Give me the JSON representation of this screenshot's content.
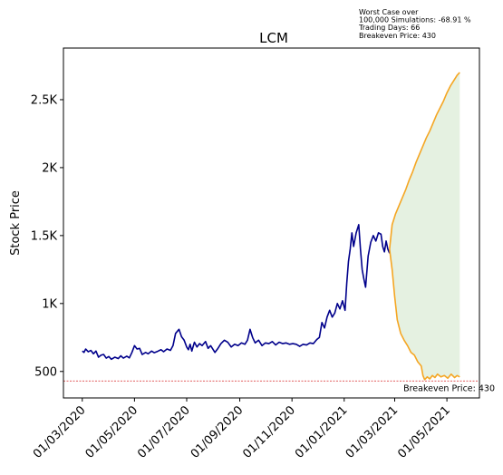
{
  "chart_data": {
    "type": "line",
    "title": "LCM",
    "ylabel": "Stock Price",
    "xlabel": "",
    "grid": false,
    "x_tick_labels": [
      "01/03/2020",
      "01/05/2020",
      "01/07/2020",
      "01/09/2020",
      "01/11/2020",
      "01/01/2021",
      "01/03/2021",
      "01/05/2021"
    ],
    "x_tick_dates": [
      "2020-03-01",
      "2020-05-01",
      "2020-07-01",
      "2020-09-01",
      "2020-11-01",
      "2021-01-01",
      "2021-03-01",
      "2021-05-01"
    ],
    "xlim": [
      "2020-02-08",
      "2021-06-08"
    ],
    "y_ticks": [
      500,
      1000,
      1500,
      2000,
      2500
    ],
    "y_tick_labels": [
      "500",
      "1K",
      "1.5K",
      "2K",
      "2.5K"
    ],
    "ylim": [
      305,
      2880
    ],
    "annotation": {
      "lines": [
        "Worst Case over",
        "100,000 Simulations: -68.91 %",
        "Trading Days: 66",
        "Breakeven Price: 430"
      ]
    },
    "breakeven": {
      "value": 430,
      "label": "Breakeven Price: 430",
      "color": "#d62728"
    },
    "series": [
      {
        "role": "historical",
        "color": "#00008b",
        "points": [
          [
            "2020-03-01",
            650
          ],
          [
            "2020-03-03",
            640
          ],
          [
            "2020-03-05",
            665
          ],
          [
            "2020-03-08",
            645
          ],
          [
            "2020-03-11",
            655
          ],
          [
            "2020-03-14",
            630
          ],
          [
            "2020-03-17",
            650
          ],
          [
            "2020-03-20",
            605
          ],
          [
            "2020-03-23",
            620
          ],
          [
            "2020-03-26",
            625
          ],
          [
            "2020-03-29",
            598
          ],
          [
            "2020-04-01",
            610
          ],
          [
            "2020-04-04",
            590
          ],
          [
            "2020-04-08",
            605
          ],
          [
            "2020-04-12",
            595
          ],
          [
            "2020-04-15",
            615
          ],
          [
            "2020-04-18",
            598
          ],
          [
            "2020-04-22",
            612
          ],
          [
            "2020-04-25",
            600
          ],
          [
            "2020-04-28",
            640
          ],
          [
            "2020-05-01",
            690
          ],
          [
            "2020-05-04",
            665
          ],
          [
            "2020-05-07",
            670
          ],
          [
            "2020-05-10",
            625
          ],
          [
            "2020-05-14",
            640
          ],
          [
            "2020-05-17",
            630
          ],
          [
            "2020-05-21",
            650
          ],
          [
            "2020-05-24",
            638
          ],
          [
            "2020-05-28",
            648
          ],
          [
            "2020-06-01",
            660
          ],
          [
            "2020-06-04",
            645
          ],
          [
            "2020-06-08",
            665
          ],
          [
            "2020-06-12",
            655
          ],
          [
            "2020-06-15",
            690
          ],
          [
            "2020-06-18",
            780
          ],
          [
            "2020-06-22",
            810
          ],
          [
            "2020-06-25",
            755
          ],
          [
            "2020-06-28",
            730
          ],
          [
            "2020-07-01",
            680
          ],
          [
            "2020-07-03",
            660
          ],
          [
            "2020-07-05",
            700
          ],
          [
            "2020-07-07",
            650
          ],
          [
            "2020-07-10",
            715
          ],
          [
            "2020-07-13",
            680
          ],
          [
            "2020-07-16",
            705
          ],
          [
            "2020-07-19",
            690
          ],
          [
            "2020-07-23",
            720
          ],
          [
            "2020-07-26",
            670
          ],
          [
            "2020-07-29",
            690
          ],
          [
            "2020-08-01",
            660
          ],
          [
            "2020-08-03",
            640
          ],
          [
            "2020-08-06",
            665
          ],
          [
            "2020-08-10",
            705
          ],
          [
            "2020-08-14",
            730
          ],
          [
            "2020-08-18",
            715
          ],
          [
            "2020-08-22",
            680
          ],
          [
            "2020-08-26",
            700
          ],
          [
            "2020-08-30",
            690
          ],
          [
            "2020-09-03",
            710
          ],
          [
            "2020-09-07",
            700
          ],
          [
            "2020-09-10",
            730
          ],
          [
            "2020-09-13",
            810
          ],
          [
            "2020-09-16",
            750
          ],
          [
            "2020-09-19",
            710
          ],
          [
            "2020-09-23",
            730
          ],
          [
            "2020-09-27",
            690
          ],
          [
            "2020-10-01",
            710
          ],
          [
            "2020-10-05",
            705
          ],
          [
            "2020-10-09",
            720
          ],
          [
            "2020-10-13",
            695
          ],
          [
            "2020-10-17",
            715
          ],
          [
            "2020-10-21",
            705
          ],
          [
            "2020-10-25",
            710
          ],
          [
            "2020-10-29",
            700
          ],
          [
            "2020-11-02",
            705
          ],
          [
            "2020-11-06",
            700
          ],
          [
            "2020-11-10",
            685
          ],
          [
            "2020-11-14",
            700
          ],
          [
            "2020-11-18",
            695
          ],
          [
            "2020-11-22",
            710
          ],
          [
            "2020-11-26",
            705
          ],
          [
            "2020-11-30",
            735
          ],
          [
            "2020-12-03",
            750
          ],
          [
            "2020-12-06",
            860
          ],
          [
            "2020-12-09",
            820
          ],
          [
            "2020-12-12",
            900
          ],
          [
            "2020-12-15",
            950
          ],
          [
            "2020-12-18",
            900
          ],
          [
            "2020-12-21",
            930
          ],
          [
            "2020-12-24",
            1000
          ],
          [
            "2020-12-27",
            960
          ],
          [
            "2020-12-30",
            1020
          ],
          [
            "2021-01-02",
            950
          ],
          [
            "2021-01-04",
            1150
          ],
          [
            "2021-01-06",
            1310
          ],
          [
            "2021-01-08",
            1400
          ],
          [
            "2021-01-10",
            1520
          ],
          [
            "2021-01-12",
            1420
          ],
          [
            "2021-01-15",
            1520
          ],
          [
            "2021-01-18",
            1580
          ],
          [
            "2021-01-20",
            1400
          ],
          [
            "2021-01-22",
            1250
          ],
          [
            "2021-01-24",
            1180
          ],
          [
            "2021-01-26",
            1120
          ],
          [
            "2021-01-29",
            1350
          ],
          [
            "2021-02-01",
            1450
          ],
          [
            "2021-02-04",
            1500
          ],
          [
            "2021-02-07",
            1460
          ],
          [
            "2021-02-10",
            1520
          ],
          [
            "2021-02-13",
            1510
          ],
          [
            "2021-02-15",
            1420
          ],
          [
            "2021-02-17",
            1380
          ],
          [
            "2021-02-19",
            1460
          ],
          [
            "2021-02-21",
            1400
          ],
          [
            "2021-02-23",
            1370
          ]
        ]
      },
      {
        "role": "simulation-upper",
        "color": "#f5a623",
        "points": [
          [
            "2021-02-23",
            1400
          ],
          [
            "2021-02-26",
            1580
          ],
          [
            "2021-03-02",
            1660
          ],
          [
            "2021-03-06",
            1720
          ],
          [
            "2021-03-10",
            1780
          ],
          [
            "2021-03-14",
            1840
          ],
          [
            "2021-03-18",
            1910
          ],
          [
            "2021-03-22",
            1970
          ],
          [
            "2021-03-26",
            2040
          ],
          [
            "2021-03-30",
            2100
          ],
          [
            "2021-04-03",
            2160
          ],
          [
            "2021-04-07",
            2220
          ],
          [
            "2021-04-11",
            2270
          ],
          [
            "2021-04-15",
            2330
          ],
          [
            "2021-04-19",
            2390
          ],
          [
            "2021-04-23",
            2440
          ],
          [
            "2021-04-27",
            2490
          ],
          [
            "2021-05-01",
            2550
          ],
          [
            "2021-05-05",
            2600
          ],
          [
            "2021-05-09",
            2640
          ],
          [
            "2021-05-13",
            2680
          ],
          [
            "2021-05-16",
            2700
          ]
        ]
      },
      {
        "role": "simulation-lower",
        "color": "#f5a623",
        "points": [
          [
            "2021-02-23",
            1400
          ],
          [
            "2021-02-26",
            1250
          ],
          [
            "2021-03-01",
            1050
          ],
          [
            "2021-03-04",
            880
          ],
          [
            "2021-03-08",
            780
          ],
          [
            "2021-03-12",
            730
          ],
          [
            "2021-03-16",
            690
          ],
          [
            "2021-03-20",
            640
          ],
          [
            "2021-03-24",
            620
          ],
          [
            "2021-03-28",
            570
          ],
          [
            "2021-04-01",
            540
          ],
          [
            "2021-04-03",
            470
          ],
          [
            "2021-04-05",
            440
          ],
          [
            "2021-04-08",
            460
          ],
          [
            "2021-04-11",
            445
          ],
          [
            "2021-04-14",
            470
          ],
          [
            "2021-04-17",
            455
          ],
          [
            "2021-04-20",
            480
          ],
          [
            "2021-04-24",
            460
          ],
          [
            "2021-04-28",
            470
          ],
          [
            "2021-05-02",
            450
          ],
          [
            "2021-05-06",
            480
          ],
          [
            "2021-05-10",
            455
          ],
          [
            "2021-05-13",
            470
          ],
          [
            "2021-05-16",
            460
          ]
        ]
      }
    ],
    "fill_color": "#e5f1e1"
  }
}
